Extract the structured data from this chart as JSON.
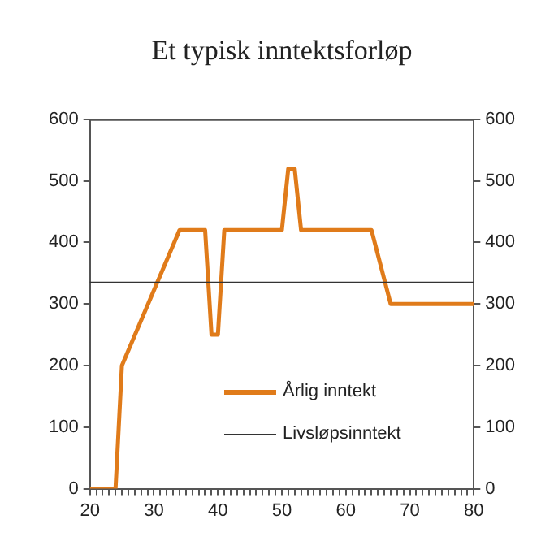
{
  "chart_data": {
    "type": "line",
    "title": "Et typisk inntektsforløp",
    "x": [
      20,
      24,
      25,
      34,
      38,
      39,
      40,
      41,
      50,
      51,
      52,
      53,
      64,
      67,
      80
    ],
    "series": [
      {
        "name": "Årlig inntekt",
        "color": "#e07b1a",
        "values": [
          0,
          0,
          200,
          420,
          420,
          250,
          250,
          420,
          420,
          520,
          520,
          420,
          420,
          300,
          300
        ]
      }
    ],
    "ref_lines": [
      {
        "axis": "y",
        "value": 335,
        "label": "Livsløpsinntekt",
        "color": "#333333",
        "line_style": "solid"
      }
    ],
    "xlim": [
      20,
      80
    ],
    "xticks": [
      20,
      {
        "value": 21,
        "label": null
      },
      {
        "value": 22,
        "label": null
      },
      {
        "value": 23,
        "label": null
      },
      {
        "value": 24,
        "label": null
      },
      {
        "value": 25,
        "label": null
      },
      {
        "value": 26,
        "label": null
      },
      {
        "value": 27,
        "label": null
      },
      {
        "value": 28,
        "label": null
      },
      {
        "value": 29,
        "label": null
      },
      30,
      {
        "value": 31,
        "label": null
      },
      {
        "value": 32,
        "label": null
      },
      {
        "value": 33,
        "label": null
      },
      {
        "value": 34,
        "label": null
      },
      {
        "value": 35,
        "label": null
      },
      {
        "value": 36,
        "label": null
      },
      {
        "value": 37,
        "label": null
      },
      {
        "value": 38,
        "label": null
      },
      {
        "value": 39,
        "label": null
      },
      40,
      {
        "value": 41,
        "label": null
      },
      {
        "value": 42,
        "label": null
      },
      {
        "value": 43,
        "label": null
      },
      {
        "value": 44,
        "label": null
      },
      {
        "value": 45,
        "label": null
      },
      {
        "value": 46,
        "label": null
      },
      {
        "value": 47,
        "label": null
      },
      {
        "value": 48,
        "label": null
      },
      {
        "value": 49,
        "label": null
      },
      50,
      {
        "value": 51,
        "label": null
      },
      {
        "value": 52,
        "label": null
      },
      {
        "value": 53,
        "label": null
      },
      {
        "value": 54,
        "label": null
      },
      {
        "value": 55,
        "label": null
      },
      {
        "value": 56,
        "label": null
      },
      {
        "value": 57,
        "label": null
      },
      {
        "value": 58,
        "label": null
      },
      {
        "value": 59,
        "label": null
      },
      60,
      {
        "value": 61,
        "label": null
      },
      {
        "value": 62,
        "label": null
      },
      {
        "value": 63,
        "label": null
      },
      {
        "value": 64,
        "label": null
      },
      {
        "value": 65,
        "label": null
      },
      {
        "value": 66,
        "label": null
      },
      {
        "value": 67,
        "label": null
      },
      {
        "value": 68,
        "label": null
      },
      {
        "value": 69,
        "label": null
      },
      70,
      {
        "value": 71,
        "label": null
      },
      {
        "value": 72,
        "label": null
      },
      {
        "value": 73,
        "label": null
      },
      {
        "value": 74,
        "label": null
      },
      {
        "value": 75,
        "label": null
      },
      {
        "value": 76,
        "label": null
      },
      {
        "value": 77,
        "label": null
      },
      {
        "value": 78,
        "label": null
      },
      {
        "value": 79,
        "label": null
      },
      80
    ],
    "ylim": [
      0,
      600
    ],
    "yticks": [
      0,
      100,
      200,
      300,
      400,
      500,
      600
    ],
    "y2lim": [
      0,
      600
    ],
    "y2ticks": [
      0,
      100,
      200,
      300,
      400,
      500,
      600
    ],
    "grid": false,
    "legend": "bottom right",
    "marker": "none",
    "line_style": "solid"
  }
}
